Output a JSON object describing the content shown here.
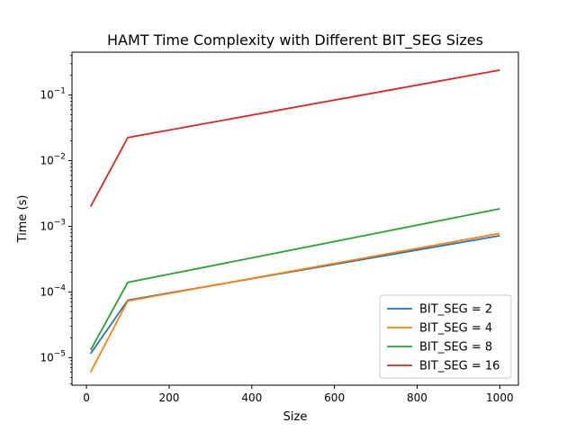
{
  "chart_data": {
    "type": "line",
    "title": "HAMT Time Complexity with Different BIT_SEG Sizes",
    "xlabel": "Size",
    "ylabel": "Time (s)",
    "x": [
      10,
      100,
      1000
    ],
    "xlim": [
      -35,
      1045
    ],
    "xticks": [
      0,
      200,
      400,
      600,
      800,
      1000
    ],
    "yscale": "log",
    "ylim": [
      3.8e-06,
      0.45
    ],
    "yticks": [
      {
        "value": 1e-05,
        "base": "10",
        "exp": "−5"
      },
      {
        "value": 0.0001,
        "base": "10",
        "exp": "−4"
      },
      {
        "value": 0.001,
        "base": "10",
        "exp": "−3"
      },
      {
        "value": 0.01,
        "base": "10",
        "exp": "−2"
      },
      {
        "value": 0.1,
        "base": "10",
        "exp": "−1"
      }
    ],
    "grid": false,
    "legend_position": "lower-right",
    "series": [
      {
        "name": "BIT_SEG = 2",
        "color": "#1f77b4",
        "values": [
          1.15e-05,
          7.5e-05,
          0.00072
        ]
      },
      {
        "name": "BIT_SEG = 4",
        "color": "#ff7f0e",
        "values": [
          6e-06,
          7.3e-05,
          0.00078
        ]
      },
      {
        "name": "BIT_SEG = 8",
        "color": "#2ca02c",
        "values": [
          1.3e-05,
          0.00014,
          0.00185
        ]
      },
      {
        "name": "BIT_SEG = 16",
        "color": "#d62728",
        "values": [
          0.002,
          0.0225,
          0.24
        ]
      }
    ]
  }
}
